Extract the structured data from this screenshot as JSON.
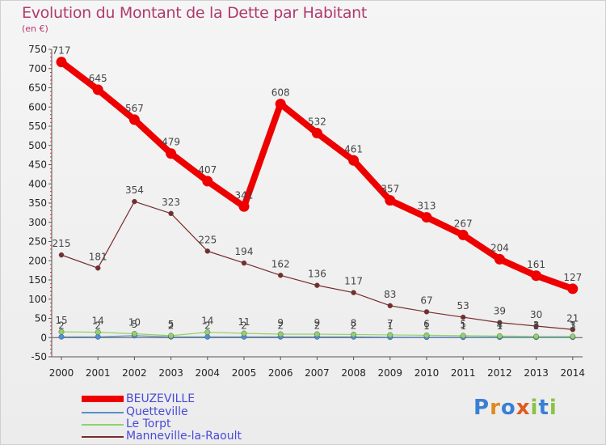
{
  "header": {
    "title": "Evolution du Montant de la Dette par Habitant",
    "subtitle": "(en €)"
  },
  "logo": {
    "text": "Proxiti",
    "colors": [
      "#3a7fd5",
      "#e08a1f",
      "#3a7fd5",
      "#e05a1f",
      "#8ac43f",
      "#3a7fd5",
      "#8ac43f"
    ]
  },
  "chart_data": {
    "type": "line",
    "title": "Evolution du Montant de la Dette par Habitant",
    "subtitle": "(en €)",
    "x": [
      "2000",
      "2001",
      "2002",
      "2003",
      "2004",
      "2005",
      "2006",
      "2007",
      "2008",
      "2009",
      "2010",
      "2011",
      "2012",
      "2013",
      "2014"
    ],
    "ylim": [
      -50,
      750
    ],
    "yticks": [
      -50,
      0,
      50,
      100,
      150,
      200,
      250,
      300,
      350,
      400,
      450,
      500,
      550,
      600,
      650,
      700,
      750
    ],
    "grid": false,
    "legend_position": "bottom-left",
    "series": [
      {
        "name": "BEUZEVILLE",
        "color": "#ee0000",
        "values": [
          717,
          645,
          567,
          479,
          407,
          341,
          608,
          532,
          461,
          357,
          313,
          267,
          204,
          161,
          127
        ]
      },
      {
        "name": "Quetteville",
        "color": "#5b8fc9",
        "values": [
          2,
          2,
          5,
          2,
          2,
          2,
          2,
          2,
          2,
          1,
          1,
          1,
          1,
          1,
          1
        ]
      },
      {
        "name": "Le Torpt",
        "color": "#8fd36a",
        "values": [
          15,
          14,
          10,
          5,
          14,
          11,
          9,
          9,
          8,
          7,
          6,
          5,
          4,
          3,
          3
        ]
      },
      {
        "name": "Manneville-la-Raoult",
        "color": "#7a2a2a",
        "values": [
          215,
          181,
          354,
          323,
          225,
          194,
          162,
          136,
          117,
          83,
          67,
          53,
          39,
          30,
          21
        ]
      }
    ]
  }
}
